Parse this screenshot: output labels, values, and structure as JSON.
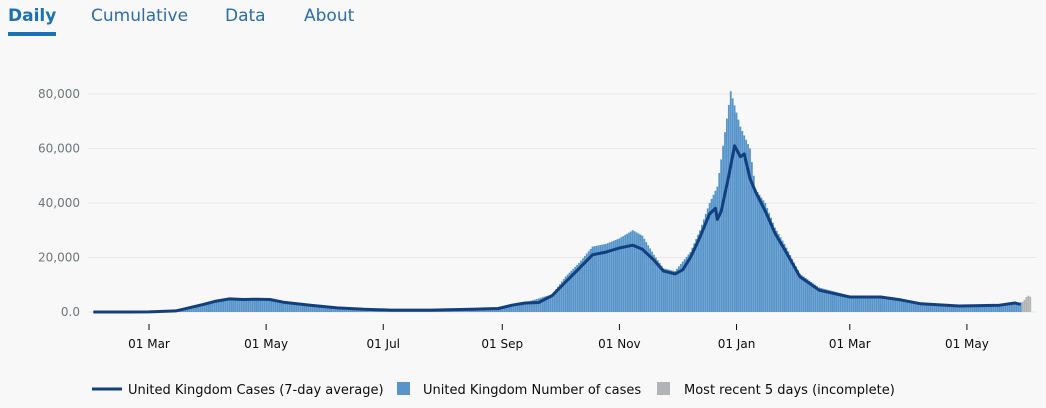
{
  "tabs": [
    {
      "label": "Daily",
      "active": true
    },
    {
      "label": "Cumulative"
    },
    {
      "label": "Data"
    },
    {
      "label": "About"
    }
  ],
  "colors": {
    "average_line": "#12407f",
    "bars": "#5694ca",
    "incomplete": "#b1b4b6",
    "tab": "#1d70b8",
    "grid": "#e8e8e8"
  },
  "chart_data": {
    "type": "bar",
    "title": "",
    "xlabel": "",
    "ylabel": "",
    "ylim": [
      0,
      80000
    ],
    "grid": true,
    "legend_placement": "bottom",
    "y_ticks": [
      "0.0",
      "20,000",
      "40,000",
      "60,000",
      "80,000"
    ],
    "y_tick_values": [
      0,
      20000,
      40000,
      60000,
      80000
    ],
    "x_ticks": [
      {
        "label": "01 Mar",
        "date": "2020-03-01"
      },
      {
        "label": "01 May",
        "date": "2020-05-01"
      },
      {
        "label": "01 Jul",
        "date": "2020-07-01"
      },
      {
        "label": "01 Sep",
        "date": "2020-09-01"
      },
      {
        "label": "01 Nov",
        "date": "2020-11-01"
      },
      {
        "label": "01 Jan",
        "date": "2021-01-01"
      },
      {
        "label": "01 Mar",
        "date": "2021-03-01"
      },
      {
        "label": "01 May",
        "date": "2021-05-01"
      }
    ],
    "legend": [
      "United Kingdom Cases (7-day average)",
      "United Kingdom Number of cases",
      "Most recent 5 days (incomplete)"
    ],
    "series": [
      {
        "name": "United Kingdom Cases (7-day average)",
        "type": "line",
        "points": [
          [
            "2020-02-01",
            0
          ],
          [
            "2020-03-01",
            50
          ],
          [
            "2020-03-15",
            400
          ],
          [
            "2020-03-29",
            2700
          ],
          [
            "2020-04-05",
            4000
          ],
          [
            "2020-04-12",
            4800
          ],
          [
            "2020-04-19",
            4600
          ],
          [
            "2020-04-26",
            4700
          ],
          [
            "2020-05-03",
            4600
          ],
          [
            "2020-05-10",
            3600
          ],
          [
            "2020-05-24",
            2500
          ],
          [
            "2020-06-07",
            1500
          ],
          [
            "2020-06-21",
            1000
          ],
          [
            "2020-07-05",
            700
          ],
          [
            "2020-07-26",
            700
          ],
          [
            "2020-08-16",
            1000
          ],
          [
            "2020-08-30",
            1300
          ],
          [
            "2020-09-06",
            2500
          ],
          [
            "2020-09-13",
            3300
          ],
          [
            "2020-09-20",
            3500
          ],
          [
            "2020-09-27",
            6000
          ],
          [
            "2020-10-04",
            11000
          ],
          [
            "2020-10-11",
            16000
          ],
          [
            "2020-10-18",
            21000
          ],
          [
            "2020-10-25",
            22000
          ],
          [
            "2020-11-01",
            23500
          ],
          [
            "2020-11-08",
            24500
          ],
          [
            "2020-11-13",
            23000
          ],
          [
            "2020-11-19",
            19000
          ],
          [
            "2020-11-24",
            15000
          ],
          [
            "2020-11-30",
            14000
          ],
          [
            "2020-12-04",
            15500
          ],
          [
            "2020-12-08",
            20000
          ],
          [
            "2020-12-13",
            27500
          ],
          [
            "2020-12-18",
            36000
          ],
          [
            "2020-12-21",
            38000
          ],
          [
            "2020-12-22",
            34000
          ],
          [
            "2020-12-24",
            37000
          ],
          [
            "2020-12-28",
            50000
          ],
          [
            "2020-12-31",
            61000
          ],
          [
            "2021-01-03",
            57000
          ],
          [
            "2021-01-05",
            58000
          ],
          [
            "2021-01-08",
            49000
          ],
          [
            "2021-01-11",
            44000
          ],
          [
            "2021-01-16",
            37000
          ],
          [
            "2021-01-21",
            29000
          ],
          [
            "2021-01-26",
            23000
          ],
          [
            "2021-02-03",
            13000
          ],
          [
            "2021-02-13",
            8000
          ],
          [
            "2021-03-01",
            5500
          ],
          [
            "2021-03-17",
            5500
          ],
          [
            "2021-03-27",
            4500
          ],
          [
            "2021-04-07",
            3000
          ],
          [
            "2021-04-27",
            2200
          ],
          [
            "2021-05-18",
            2500
          ],
          [
            "2021-05-26",
            3300
          ],
          [
            "2021-05-29",
            2800
          ]
        ]
      },
      {
        "name": "United Kingdom Number of cases",
        "type": "bar",
        "points": [
          [
            "2020-02-01",
            0
          ],
          [
            "2020-03-01",
            50
          ],
          [
            "2020-03-15",
            500
          ],
          [
            "2020-03-29",
            3000
          ],
          [
            "2020-04-05",
            4500
          ],
          [
            "2020-04-12",
            5200
          ],
          [
            "2020-04-26",
            5000
          ],
          [
            "2020-05-03",
            4800
          ],
          [
            "2020-05-10",
            3800
          ],
          [
            "2020-05-24",
            2600
          ],
          [
            "2020-06-07",
            1600
          ],
          [
            "2020-07-05",
            700
          ],
          [
            "2020-08-16",
            1100
          ],
          [
            "2020-08-30",
            1400
          ],
          [
            "2020-09-13",
            3500
          ],
          [
            "2020-09-27",
            6500
          ],
          [
            "2020-10-04",
            13000
          ],
          [
            "2020-10-11",
            18000
          ],
          [
            "2020-10-18",
            24000
          ],
          [
            "2020-10-25",
            25000
          ],
          [
            "2020-11-01",
            27000
          ],
          [
            "2020-11-08",
            30000
          ],
          [
            "2020-11-13",
            28000
          ],
          [
            "2020-11-19",
            21000
          ],
          [
            "2020-11-24",
            16000
          ],
          [
            "2020-11-30",
            15000
          ],
          [
            "2020-12-08",
            22000
          ],
          [
            "2020-12-13",
            30000
          ],
          [
            "2020-12-18",
            40000
          ],
          [
            "2020-12-22",
            46000
          ],
          [
            "2020-12-29",
            81000
          ],
          [
            "2021-01-03",
            68000
          ],
          [
            "2021-01-08",
            60000
          ],
          [
            "2021-01-11",
            45000
          ],
          [
            "2021-01-16",
            40000
          ],
          [
            "2021-01-21",
            31000
          ],
          [
            "2021-01-26",
            25000
          ],
          [
            "2021-02-03",
            14000
          ],
          [
            "2021-02-13",
            9000
          ],
          [
            "2021-03-01",
            6000
          ],
          [
            "2021-03-17",
            6000
          ],
          [
            "2021-03-27",
            5000
          ],
          [
            "2021-04-07",
            3200
          ],
          [
            "2021-04-27",
            2400
          ],
          [
            "2021-05-18",
            2800
          ],
          [
            "2021-05-29",
            3500
          ]
        ]
      },
      {
        "name": "Most recent 5 days (incomplete)",
        "type": "bar",
        "points": [
          [
            "2021-05-30",
            3800
          ],
          [
            "2021-05-31",
            4500
          ],
          [
            "2021-06-01",
            5500
          ],
          [
            "2021-06-02",
            6000
          ],
          [
            "2021-06-03",
            5600
          ]
        ]
      }
    ]
  }
}
